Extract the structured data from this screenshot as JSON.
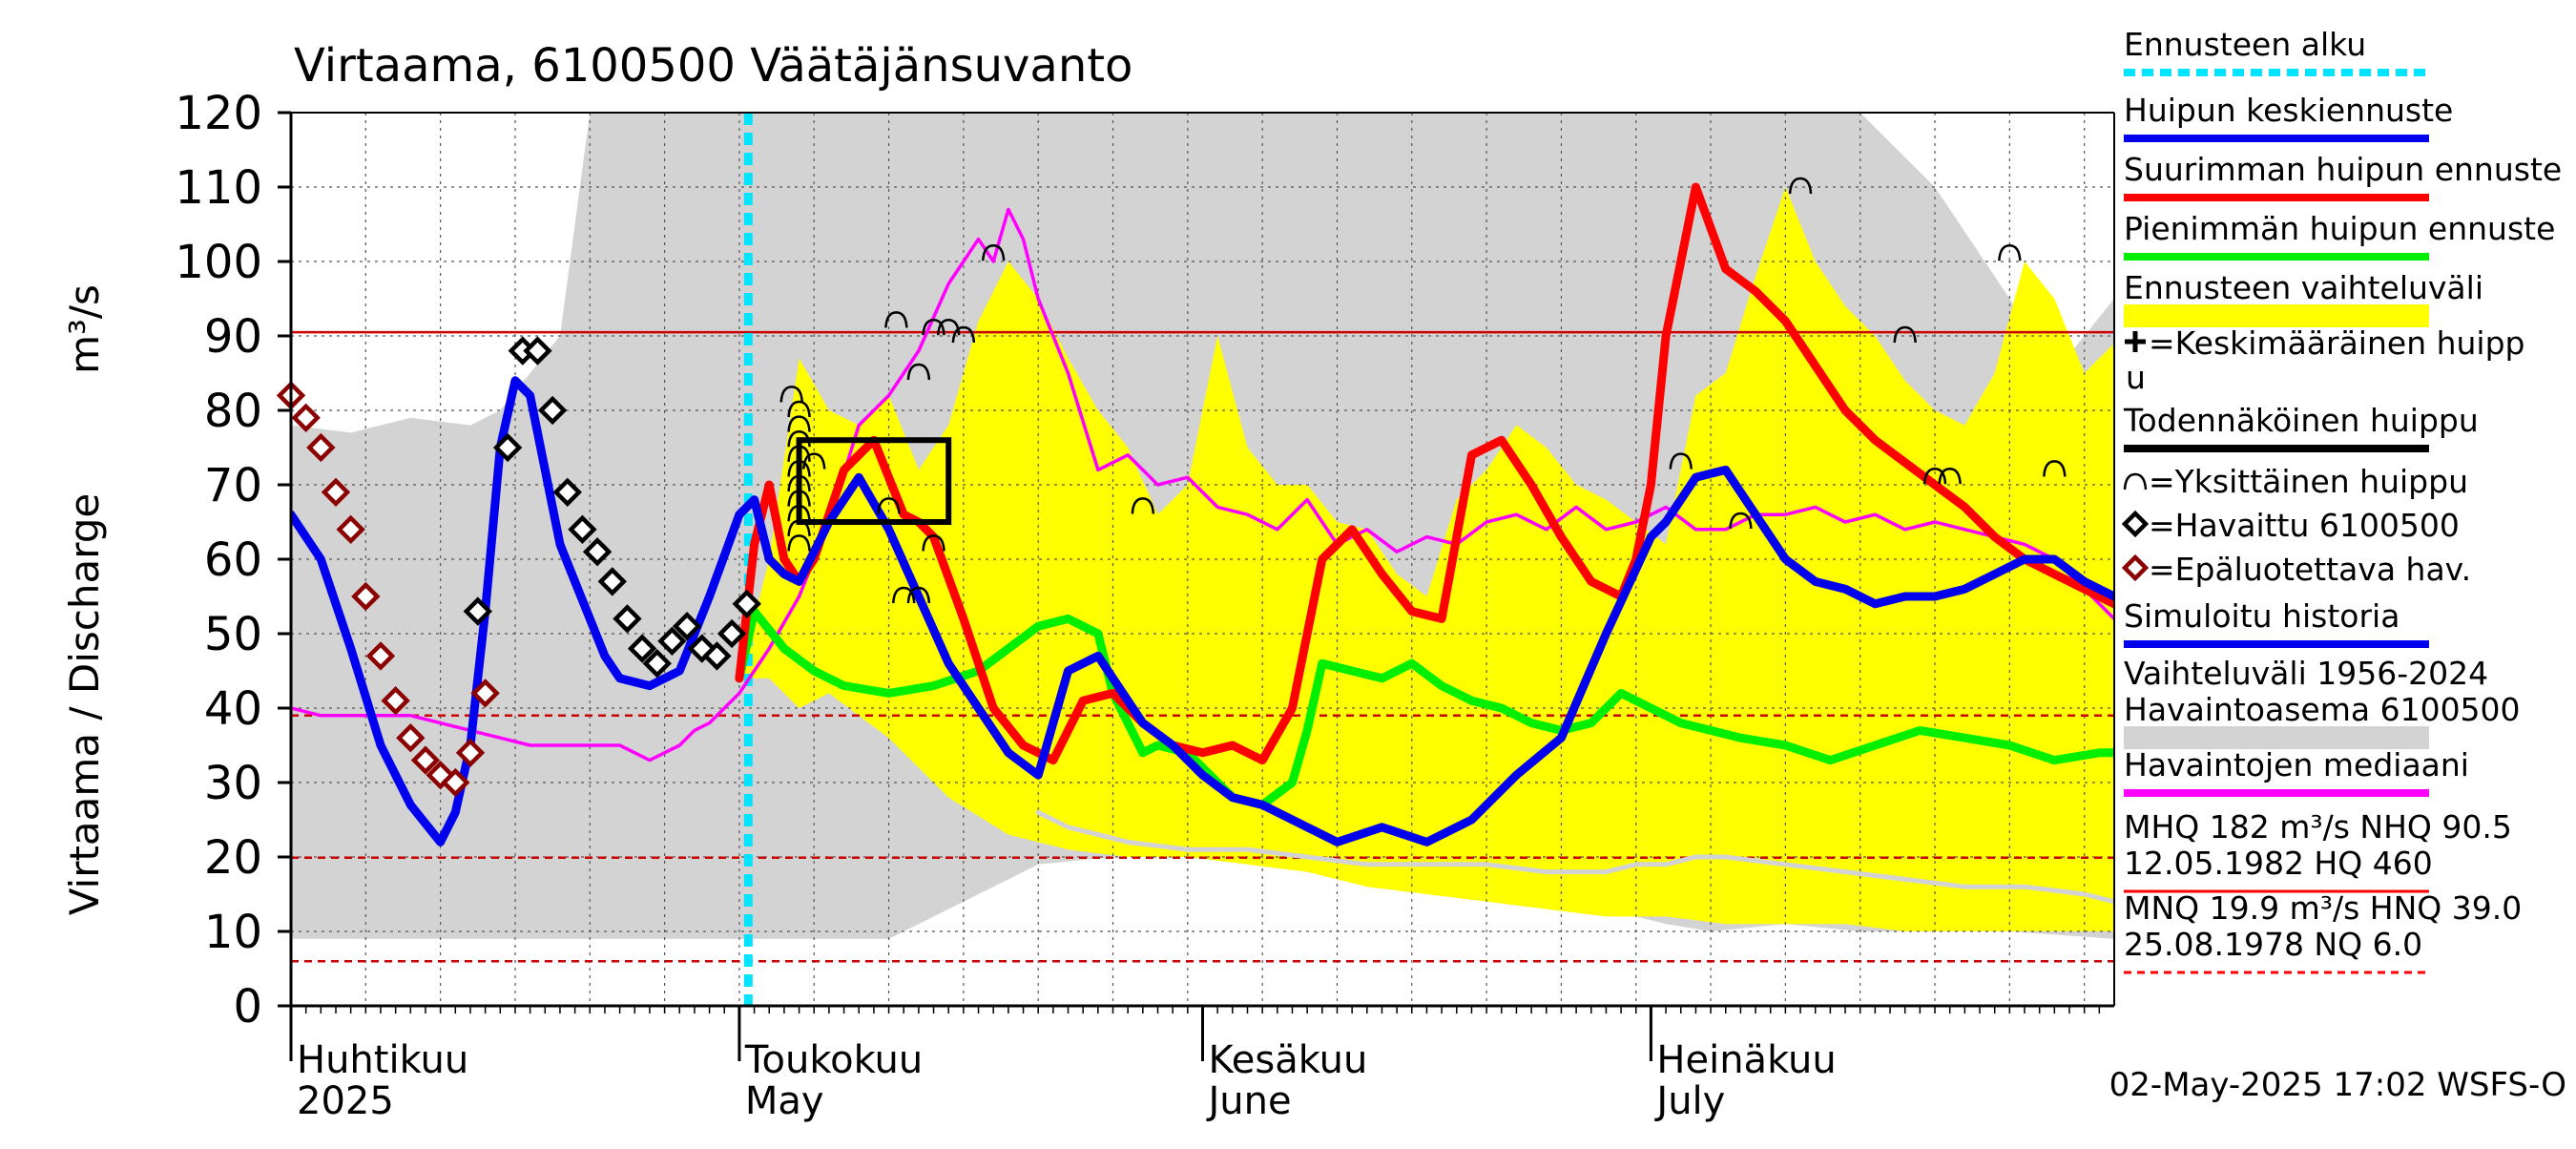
{
  "chart_data": {
    "type": "line",
    "title": "Virtaama, 6100500 Väätäjänsuvanto",
    "ylabel": "Virtaama / Discharge",
    "yunit": "m³/s",
    "ylim": [
      0,
      120
    ],
    "yticks": [
      0,
      10,
      20,
      30,
      40,
      50,
      60,
      70,
      80,
      90,
      100,
      110,
      120
    ],
    "xlim": [
      0,
      122
    ],
    "x_unit": "days since 1 April 2025",
    "month_labels": [
      {
        "x": 0,
        "fi": "Huhtikuu",
        "en": "2025"
      },
      {
        "x": 30,
        "fi": "Toukokuu",
        "en": "May"
      },
      {
        "x": 61,
        "fi": "Kesäkuu",
        "en": "June"
      },
      {
        "x": 91,
        "fi": "Heinäkuu",
        "en": "July"
      }
    ],
    "forecast_start": 30.6,
    "reference_lines": [
      {
        "name": "NHQ",
        "value": 90.5,
        "color": "#cc0000",
        "dashed": false
      },
      {
        "name": "HNQ",
        "value": 39.0,
        "color": "#cc0000",
        "dashed": true
      },
      {
        "name": "MNQ",
        "value": 19.9,
        "color": "#cc0000",
        "dashed": true
      },
      {
        "name": "NQ",
        "value": 6.0,
        "color": "#cc0000",
        "dashed": true
      }
    ],
    "series": [
      {
        "name": "Vaihteluväli 1956-2024 upper",
        "color": "#d3d3d3",
        "x": [
          0,
          4,
          8,
          12,
          14,
          16,
          18,
          20,
          22,
          25,
          28,
          30,
          32,
          35,
          40,
          45,
          50,
          55,
          60,
          62,
          65,
          70,
          75,
          80,
          90,
          100,
          103,
          105,
          110,
          115,
          118,
          122
        ],
        "values": [
          78,
          77,
          79,
          78,
          80,
          85,
          90,
          120,
          120,
          120,
          120,
          120,
          120,
          120,
          120,
          120,
          120,
          120,
          120,
          120,
          120,
          120,
          120,
          120,
          120,
          120,
          120,
          120,
          110,
          95,
          85,
          95
        ]
      },
      {
        "name": "Vaihteluväli 1956-2024 lower",
        "color": "#d3d3d3",
        "x": [
          0,
          10,
          20,
          25,
          30,
          35,
          40,
          50,
          60,
          62,
          65,
          70,
          75,
          80,
          85,
          90,
          92,
          95,
          100,
          105,
          110,
          115,
          122
        ],
        "values": [
          9,
          9,
          9,
          9,
          9,
          9,
          9,
          19,
          21,
          22,
          21,
          19,
          17,
          15,
          13,
          12,
          11,
          10,
          11,
          10,
          10,
          10,
          9
        ]
      },
      {
        "name": "Ennusteen vaihteluväli upper",
        "color": "#ffff00",
        "x": [
          30,
          32,
          34,
          36,
          38,
          40,
          42,
          44,
          46,
          48,
          50,
          52,
          54,
          56,
          58,
          60,
          62,
          64,
          66,
          68,
          70,
          72,
          74,
          76,
          78,
          80,
          82,
          84,
          86,
          88,
          90,
          92,
          94,
          96,
          98,
          100,
          102,
          104,
          106,
          108,
          110,
          112,
          114,
          116,
          118,
          120,
          122
        ],
        "values": [
          44,
          60,
          87,
          80,
          78,
          82,
          72,
          78,
          92,
          100,
          95,
          87,
          80,
          75,
          66,
          70,
          90,
          75,
          70,
          70,
          65,
          64,
          58,
          55,
          68,
          72,
          78,
          75,
          70,
          68,
          65,
          62,
          82,
          85,
          98,
          110,
          100,
          94,
          90,
          84,
          80,
          78,
          85,
          100,
          95,
          85,
          89
        ]
      },
      {
        "name": "Ennusteen vaihteluväli lower",
        "color": "#ffff00",
        "x": [
          30,
          32,
          34,
          36,
          38,
          40,
          44,
          48,
          50,
          52,
          56,
          60,
          64,
          68,
          72,
          76,
          80,
          84,
          88,
          92,
          96,
          100,
          104,
          108,
          112,
          116,
          122
        ],
        "values": [
          44,
          44,
          40,
          42,
          39,
          36,
          28,
          23,
          22,
          21,
          20,
          20,
          19,
          18,
          16,
          15,
          14,
          13,
          12,
          12,
          11,
          11,
          11,
          10,
          10,
          10,
          10
        ]
      },
      {
        "name": "Havaintojen mediaani",
        "color": "#ff00ff",
        "x": [
          0,
          2,
          4,
          6,
          8,
          10,
          12,
          14,
          16,
          18,
          20,
          22,
          24,
          26,
          27,
          28,
          30,
          32,
          34,
          36,
          38,
          40,
          42,
          44,
          46,
          47,
          48,
          49,
          50,
          52,
          54,
          56,
          58,
          60,
          62,
          64,
          66,
          68,
          70,
          72,
          74,
          76,
          78,
          80,
          82,
          84,
          86,
          88,
          90,
          92,
          94,
          96,
          98,
          100,
          102,
          104,
          106,
          108,
          110,
          112,
          114,
          116,
          118,
          120,
          122
        ],
        "values": [
          40,
          39,
          39,
          39,
          39,
          38,
          37,
          36,
          35,
          35,
          35,
          35,
          33,
          35,
          37,
          38,
          42,
          48,
          55,
          65,
          78,
          82,
          88,
          97,
          103,
          100,
          107,
          103,
          95,
          85,
          72,
          74,
          70,
          71,
          67,
          66,
          64,
          68,
          62,
          64,
          61,
          63,
          62,
          65,
          66,
          64,
          67,
          64,
          65,
          67,
          64,
          64,
          66,
          66,
          67,
          65,
          66,
          64,
          65,
          64,
          63,
          62,
          60,
          56,
          52
        ]
      },
      {
        "name": "Havaintojen mediaani low",
        "color": "#d3d3d3",
        "x": [
          50,
          52,
          54,
          56,
          60,
          64,
          68,
          72,
          76,
          80,
          84,
          88,
          90,
          92,
          94,
          96,
          100,
          104,
          108,
          112,
          116,
          120,
          122
        ],
        "values": [
          26,
          24,
          23,
          22,
          21,
          21,
          20,
          19,
          19,
          19,
          18,
          18,
          19,
          19,
          20,
          20,
          19,
          18,
          17,
          16,
          16,
          15,
          14
        ]
      },
      {
        "name": "Pienimmän huipun ennuste",
        "color": "#00ee00",
        "x": [
          30,
          31,
          33,
          35,
          37,
          40,
          43,
          46,
          48,
          50,
          52,
          54,
          55,
          57,
          58,
          60,
          61,
          63,
          65,
          67,
          68,
          69,
          71,
          73,
          75,
          77,
          79,
          81,
          83,
          85,
          87,
          89,
          91,
          93,
          95,
          97,
          100,
          103,
          106,
          109,
          112,
          115,
          118,
          121,
          122
        ],
        "values": [
          44,
          53,
          48,
          45,
          43,
          42,
          43,
          45,
          48,
          51,
          52,
          50,
          42,
          34,
          35,
          34,
          32,
          28,
          27,
          30,
          37,
          46,
          45,
          44,
          46,
          43,
          41,
          40,
          38,
          37,
          38,
          42,
          40,
          38,
          37,
          36,
          35,
          33,
          35,
          37,
          36,
          35,
          33,
          34,
          34
        ]
      },
      {
        "name": "Suurimman huipun ennuste",
        "color": "#ff0000",
        "x": [
          30,
          31,
          32,
          33,
          34,
          35,
          37,
          39,
          41,
          42,
          43,
          45,
          47,
          49,
          51,
          53,
          55,
          57,
          59,
          61,
          63,
          65,
          67,
          69,
          71,
          73,
          75,
          77,
          79,
          81,
          83,
          85,
          87,
          89,
          90,
          91,
          92,
          94,
          96,
          98,
          100,
          102,
          104,
          106,
          108,
          110,
          112,
          114,
          116,
          118,
          120,
          122
        ],
        "values": [
          44,
          62,
          70,
          60,
          57,
          60,
          72,
          76,
          66,
          65,
          63,
          52,
          40,
          35,
          33,
          41,
          42,
          38,
          35,
          34,
          35,
          33,
          40,
          60,
          64,
          58,
          53,
          52,
          74,
          76,
          70,
          63,
          57,
          55,
          60,
          70,
          90,
          110,
          99,
          96,
          92,
          86,
          80,
          76,
          73,
          70,
          67,
          63,
          60,
          58,
          56,
          54
        ]
      },
      {
        "name": "Huipun keskiennuste",
        "color": "#0000ee",
        "x": [
          0,
          2,
          4,
          6,
          8,
          10,
          11,
          12,
          13,
          14,
          15,
          16,
          17,
          18,
          19,
          20,
          21,
          22,
          24,
          26,
          28,
          30,
          31,
          32,
          33,
          34,
          36,
          38,
          40,
          42,
          44,
          46,
          48,
          50,
          52,
          54,
          55,
          57,
          59,
          61,
          63,
          65,
          67,
          70,
          73,
          76,
          79,
          82,
          85,
          88,
          91,
          92,
          94,
          96,
          98,
          100,
          102,
          104,
          106,
          108,
          110,
          112,
          114,
          116,
          118,
          120,
          122
        ],
        "values": [
          66,
          60,
          48,
          35,
          27,
          22,
          26,
          35,
          53,
          75,
          84,
          82,
          72,
          62,
          57,
          52,
          47,
          44,
          43,
          45,
          55,
          66,
          68,
          60,
          58,
          57,
          65,
          71,
          64,
          55,
          46,
          40,
          34,
          31,
          45,
          47,
          44,
          38,
          35,
          31,
          28,
          27,
          25,
          22,
          24,
          22,
          25,
          31,
          36,
          50,
          63,
          65,
          71,
          72,
          66,
          60,
          57,
          56,
          54,
          55,
          55,
          56,
          58,
          60,
          60,
          57,
          55
        ]
      },
      {
        "name": "Havaittu 6100500",
        "color": "#000000",
        "x": [
          12.5,
          14.5,
          15.5,
          16.5,
          17.5,
          18.5,
          19.5,
          20.5,
          21.5,
          22.5,
          23.5,
          24.5,
          25.5,
          26.5,
          27.5,
          28.5,
          29.5,
          30.5
        ],
        "values": [
          53,
          75,
          88,
          88,
          80,
          69,
          64,
          61,
          57,
          52,
          48,
          46,
          49,
          51,
          48,
          47,
          50,
          54
        ]
      },
      {
        "name": "Epäluotettava hav.",
        "color": "#8b0000",
        "x": [
          0,
          1,
          2,
          3,
          4,
          5,
          6,
          7,
          8,
          9,
          10,
          11,
          12,
          13
        ],
        "values": [
          82,
          79,
          75,
          69,
          64,
          55,
          47,
          41,
          36,
          33,
          31,
          30,
          34,
          42
        ]
      }
    ],
    "peaks": {
      "individual_peak_symbol": "⌒",
      "individual_peaks": [
        {
          "x": 33.5,
          "y": 82
        },
        {
          "x": 34,
          "y": 80
        },
        {
          "x": 34,
          "y": 78
        },
        {
          "x": 34,
          "y": 76
        },
        {
          "x": 34,
          "y": 74
        },
        {
          "x": 34,
          "y": 72
        },
        {
          "x": 34,
          "y": 70
        },
        {
          "x": 34,
          "y": 68
        },
        {
          "x": 34,
          "y": 66
        },
        {
          "x": 34,
          "y": 64
        },
        {
          "x": 34,
          "y": 62
        },
        {
          "x": 35,
          "y": 73
        },
        {
          "x": 40.5,
          "y": 92
        },
        {
          "x": 42,
          "y": 85
        },
        {
          "x": 43,
          "y": 91
        },
        {
          "x": 44,
          "y": 91
        },
        {
          "x": 45,
          "y": 90
        },
        {
          "x": 47,
          "y": 101
        },
        {
          "x": 40,
          "y": 67
        },
        {
          "x": 41,
          "y": 55
        },
        {
          "x": 42,
          "y": 55
        },
        {
          "x": 43,
          "y": 62
        },
        {
          "x": 57,
          "y": 67
        },
        {
          "x": 93,
          "y": 73
        },
        {
          "x": 97,
          "y": 65
        },
        {
          "x": 101,
          "y": 110
        },
        {
          "x": 108,
          "y": 90
        },
        {
          "x": 110,
          "y": 71
        },
        {
          "x": 111,
          "y": 71
        },
        {
          "x": 115,
          "y": 101
        },
        {
          "x": 118,
          "y": 72
        }
      ],
      "probable_peak_box": {
        "x0": 34.0,
        "x1": 44.0,
        "y0": 65.0,
        "y1": 76.0
      }
    }
  },
  "legend": {
    "items": [
      {
        "label": "Ennusteen alku",
        "color": "#00e5ff",
        "style": "dotted"
      },
      {
        "label": "Huipun keskiennuste",
        "color": "#0000ee",
        "style": "line"
      },
      {
        "label": "Suurimman huipun ennuste",
        "color": "#ff0000",
        "style": "line"
      },
      {
        "label": "Pienimmän huipun ennuste",
        "color": "#00ee00",
        "style": "line"
      },
      {
        "label": "Ennusteen vaihteluväli",
        "color": "#ffff00",
        "style": "band"
      },
      {
        "label": "=Keskimääräinen huipp",
        "label2": "u",
        "color": "#000000",
        "style": "plus"
      },
      {
        "label": "Todennäköinen huippu",
        "color": "#000000",
        "style": "line"
      },
      {
        "label": "=Yksittäinen huippu",
        "color": "#000000",
        "style": "arc"
      },
      {
        "label": "=Havaittu 6100500",
        "color": "#000000",
        "style": "diamond"
      },
      {
        "label": "=Epäluotettava hav.",
        "color": "#8b0000",
        "style": "diamond"
      },
      {
        "label": "Simuloitu historia",
        "color": "#0000ee",
        "style": "line"
      },
      {
        "label": "Vaihteluväli 1956-2024",
        "label2": " Havaintoasema 6100500",
        "color": "#d3d3d3",
        "style": "band"
      },
      {
        "label": "Havaintojen mediaani",
        "color": "#ff00ff",
        "style": "line"
      },
      {
        "label": "MHQ  182 m³/s NHQ 90.5",
        "label2": "12.05.1982 HQ  460",
        "color": "#ff0000",
        "style": "thin"
      },
      {
        "label": "MNQ 19.9 m³/s HNQ 39.0",
        "label2": "25.08.1978 NQ  6.0",
        "color": "#ff0000",
        "style": "dashed"
      }
    ]
  },
  "footer": {
    "timestamp": "02-May-2025 17:02 WSFS-O"
  }
}
